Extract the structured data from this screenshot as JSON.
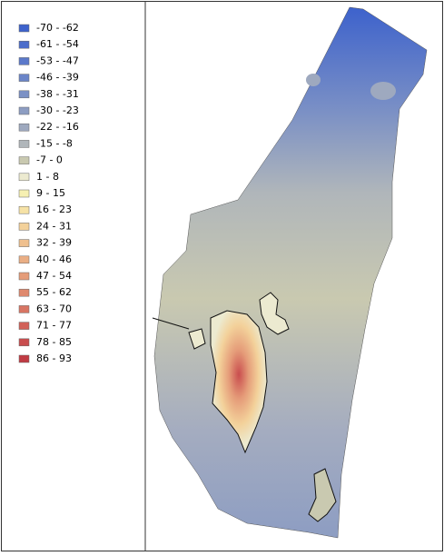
{
  "legend": {
    "items": [
      {
        "label": "-70 - -62",
        "color": "#3d62cc"
      },
      {
        "label": "-61 - -54",
        "color": "#4b6dcb"
      },
      {
        "label": "-53 - -47",
        "color": "#5b79ca"
      },
      {
        "label": "-46 - -39",
        "color": "#6b85c8"
      },
      {
        "label": "-38 - -31",
        "color": "#7c91c5"
      },
      {
        "label": "-30 - -23",
        "color": "#8d9dc2"
      },
      {
        "label": "-22 - -16",
        "color": "#9ea9bf"
      },
      {
        "label": "-15 - -8",
        "color": "#b0b6ba"
      },
      {
        "label": "-7 - 0",
        "color": "#c9c9b0"
      },
      {
        "label": "1 - 8",
        "color": "#ecead0"
      },
      {
        "label": "9 - 15",
        "color": "#f6f0b2"
      },
      {
        "label": "16 - 23",
        "color": "#f6e2a6"
      },
      {
        "label": "24 - 31",
        "color": "#f3d19a"
      },
      {
        "label": "32 - 39",
        "color": "#efc08f"
      },
      {
        "label": "40 - 46",
        "color": "#eaae84"
      },
      {
        "label": "47 - 54",
        "color": "#e59c79"
      },
      {
        "label": "55 - 62",
        "color": "#df896e"
      },
      {
        "label": "63 - 70",
        "color": "#d87563"
      },
      {
        "label": "71 - 77",
        "color": "#d16158"
      },
      {
        "label": "78 - 85",
        "color": "#c94d4e"
      },
      {
        "label": "86 - 93",
        "color": "#c03b43"
      }
    ]
  }
}
